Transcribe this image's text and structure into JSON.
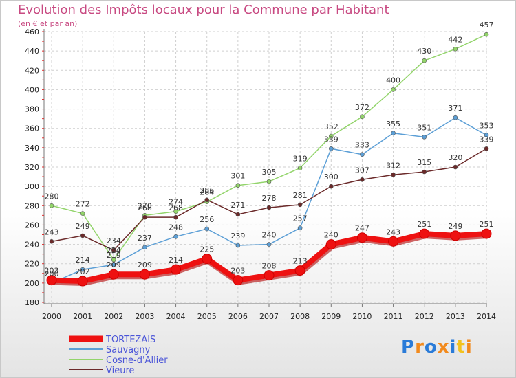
{
  "title": "Evolution des Impôts locaux pour la Commune par Habitant",
  "subtitle": "(en € et par an)",
  "logo": {
    "text": "Proxiti",
    "colors": [
      "#2a7bd8",
      "#f28a1d",
      "#2a7bd8",
      "#f28a1d",
      "#2a7bd8",
      "#f2c21d",
      "#f28a1d"
    ]
  },
  "chart_data": {
    "type": "line",
    "x": [
      2000,
      2001,
      2002,
      2003,
      2004,
      2005,
      2006,
      2007,
      2008,
      2009,
      2010,
      2011,
      2012,
      2013,
      2014
    ],
    "ylim": [
      180,
      460
    ],
    "yticks": [
      180,
      200,
      220,
      240,
      260,
      280,
      300,
      320,
      340,
      360,
      380,
      400,
      420,
      440,
      460
    ],
    "grid": true,
    "legend": "bottom-left",
    "series": [
      {
        "name": "Cosne-d'Allier",
        "color": "#92d46a",
        "values": [
          280,
          272,
          224,
          270,
          274,
          284,
          301,
          305,
          319,
          352,
          372,
          400,
          430,
          442,
          457
        ]
      },
      {
        "name": "Sauvagny",
        "color": "#5c9fd6",
        "values": [
          200,
          214,
          219,
          237,
          248,
          256,
          239,
          240,
          257,
          339,
          333,
          355,
          351,
          371,
          353
        ]
      },
      {
        "name": "Vieure",
        "color": "#6b2a2a",
        "values": [
          243,
          249,
          234,
          268,
          268,
          286,
          271,
          278,
          281,
          300,
          307,
          312,
          315,
          320,
          339
        ]
      },
      {
        "name": "TORTEZAIS",
        "color": "#ee1111",
        "values": [
          203,
          202,
          209,
          209,
          214,
          225,
          203,
          208,
          213,
          240,
          247,
          243,
          251,
          249,
          251
        ]
      }
    ],
    "legend_order": [
      "TORTEZAIS",
      "Sauvagny",
      "Cosne-d'Allier",
      "Vieure"
    ]
  }
}
